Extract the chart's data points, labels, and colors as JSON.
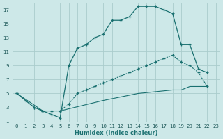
{
  "xlabel": "Humidex (Indice chaleur)",
  "bg_color": "#cde8e8",
  "grid_color": "#aacccc",
  "line_color": "#1a7070",
  "xlim": [
    -0.5,
    23.5
  ],
  "ylim": [
    1,
    18
  ],
  "xticks": [
    0,
    1,
    2,
    3,
    4,
    5,
    6,
    7,
    8,
    9,
    10,
    11,
    12,
    13,
    14,
    15,
    16,
    17,
    18,
    19,
    20,
    21,
    22,
    23
  ],
  "yticks": [
    1,
    3,
    5,
    7,
    9,
    11,
    13,
    15,
    17
  ],
  "curve1_x": [
    0,
    1,
    2,
    3,
    4,
    5,
    6,
    7,
    8,
    9,
    10,
    11,
    12,
    13,
    14,
    15,
    16,
    17,
    18,
    19,
    20,
    21,
    22
  ],
  "curve1_y": [
    5,
    4,
    3,
    2.5,
    2,
    1.5,
    9,
    11.5,
    12,
    13,
    13.5,
    15.5,
    15.5,
    16,
    17.5,
    17.5,
    17.5,
    17,
    16.5,
    12,
    12,
    8.5,
    8
  ],
  "curve2_x": [
    0,
    2,
    3,
    4,
    5,
    6,
    7,
    8,
    9,
    10,
    11,
    12,
    13,
    14,
    15,
    16,
    17,
    18,
    19,
    20,
    21,
    22
  ],
  "curve2_y": [
    5,
    3,
    2.5,
    2.5,
    2.5,
    3.5,
    5,
    5.5,
    6,
    6.5,
    7,
    7.5,
    8,
    8.5,
    9,
    9.5,
    10,
    10.5,
    9.5,
    9,
    8,
    6
  ],
  "curve3_x": [
    0,
    3,
    5,
    10,
    14,
    18,
    19,
    20,
    22
  ],
  "curve3_y": [
    5,
    2.5,
    2.5,
    4,
    5,
    5.5,
    5.5,
    6,
    6
  ]
}
